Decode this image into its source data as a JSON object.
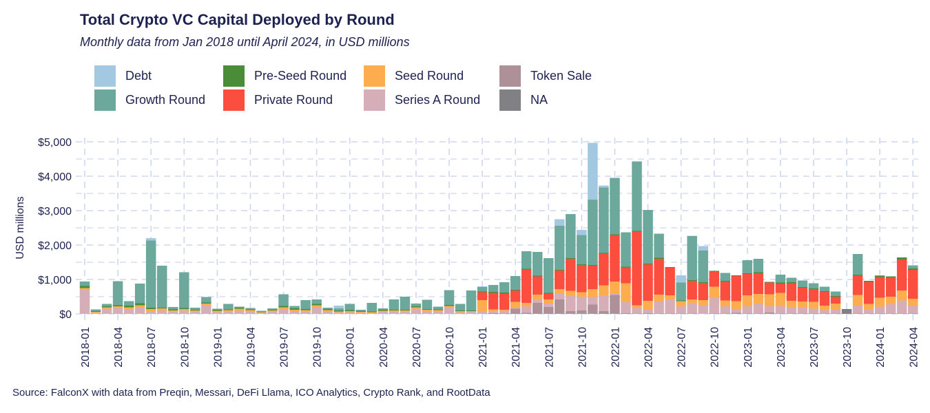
{
  "chart_data": {
    "type": "bar",
    "stacked": true,
    "title": "Total Crypto VC Capital Deployed by Round",
    "subtitle": "Monthly data from Jan 2018 until April 2024, in USD millions",
    "xlabel": "",
    "ylabel": "USD millions",
    "ylim": [
      0,
      5000
    ],
    "yticks": [
      0,
      1000,
      2000,
      3000,
      4000,
      5000
    ],
    "ytick_labels": [
      "$0",
      "$1,000",
      "$2,000",
      "$3,000",
      "$4,000",
      "$5,000"
    ],
    "xtick_labels": [
      "2018-01",
      "2018-04",
      "2018-07",
      "2018-10",
      "2019-01",
      "2019-04",
      "2019-07",
      "2019-10",
      "2020-01",
      "2020-04",
      "2020-07",
      "2020-10",
      "2021-01",
      "2021-04",
      "2021-07",
      "2021-10",
      "2022-01",
      "2022-04",
      "2022-07",
      "2022-10",
      "2023-01",
      "2023-04",
      "2023-07",
      "2023-10",
      "2024-01",
      "2024-04"
    ],
    "grid": true,
    "legend_position": "top",
    "source": "Source: FalconX with data from Preqin, Messari, DeFi Llama, ICO Analytics, Crypto Rank, and RootData",
    "categories": [
      "2018-01",
      "2018-02",
      "2018-03",
      "2018-04",
      "2018-05",
      "2018-06",
      "2018-07",
      "2018-08",
      "2018-09",
      "2018-10",
      "2018-11",
      "2018-12",
      "2019-01",
      "2019-02",
      "2019-03",
      "2019-04",
      "2019-05",
      "2019-06",
      "2019-07",
      "2019-08",
      "2019-09",
      "2019-10",
      "2019-11",
      "2019-12",
      "2020-01",
      "2020-02",
      "2020-03",
      "2020-04",
      "2020-05",
      "2020-06",
      "2020-07",
      "2020-08",
      "2020-09",
      "2020-10",
      "2020-11",
      "2020-12",
      "2021-01",
      "2021-02",
      "2021-03",
      "2021-04",
      "2021-05",
      "2021-06",
      "2021-07",
      "2021-08",
      "2021-09",
      "2021-10",
      "2021-11",
      "2021-12",
      "2022-01",
      "2022-02",
      "2022-03",
      "2022-04",
      "2022-05",
      "2022-06",
      "2022-07",
      "2022-08",
      "2022-09",
      "2022-10",
      "2022-11",
      "2022-12",
      "2023-01",
      "2023-02",
      "2023-03",
      "2023-04",
      "2023-05",
      "2023-06",
      "2023-07",
      "2023-08",
      "2023-09",
      "2023-10",
      "2023-11",
      "2023-12",
      "2024-01",
      "2024-02",
      "2024-03",
      "2024-04"
    ],
    "series": [
      {
        "name": "NA",
        "color": "#818085",
        "values": [
          0,
          0,
          0,
          0,
          0,
          0,
          0,
          0,
          0,
          0,
          0,
          0,
          0,
          0,
          0,
          0,
          0,
          0,
          0,
          0,
          0,
          0,
          0,
          0,
          0,
          0,
          0,
          0,
          0,
          0,
          0,
          0,
          0,
          0,
          0,
          0,
          0,
          0,
          0,
          0,
          0,
          0,
          0,
          0,
          0,
          0,
          0,
          0,
          0,
          0,
          0,
          0,
          0,
          0,
          0,
          0,
          0,
          0,
          0,
          0,
          0,
          0,
          0,
          0,
          0,
          0,
          0,
          0,
          0,
          130,
          0,
          0,
          0,
          0,
          0,
          0
        ]
      },
      {
        "name": "Token Sale",
        "color": "#ad9098",
        "values": [
          0,
          0,
          0,
          0,
          0,
          0,
          0,
          0,
          0,
          0,
          0,
          0,
          0,
          0,
          0,
          0,
          0,
          0,
          0,
          0,
          0,
          0,
          0,
          0,
          0,
          0,
          0,
          0,
          0,
          0,
          0,
          0,
          0,
          0,
          0,
          0,
          0,
          20,
          10,
          150,
          30,
          320,
          200,
          420,
          80,
          100,
          270,
          80,
          550,
          20,
          10,
          20,
          10,
          10,
          10,
          10,
          0,
          10,
          10,
          30,
          10,
          10,
          40,
          10,
          10,
          10,
          10,
          10,
          10,
          0,
          10,
          10,
          10,
          10,
          10,
          10
        ]
      },
      {
        "name": "Series A Round",
        "color": "#d5aeb8",
        "values": [
          700,
          30,
          150,
          170,
          130,
          180,
          80,
          100,
          70,
          100,
          60,
          250,
          50,
          70,
          90,
          60,
          30,
          60,
          130,
          60,
          70,
          200,
          60,
          40,
          40,
          30,
          10,
          70,
          60,
          70,
          150,
          70,
          70,
          180,
          40,
          60,
          70,
          50,
          80,
          20,
          190,
          80,
          100,
          180,
          440,
          400,
          220,
          450,
          40,
          320,
          160,
          100,
          350,
          410,
          210,
          310,
          250,
          450,
          210,
          110,
          210,
          290,
          180,
          220,
          190,
          180,
          140,
          100,
          120,
          0,
          230,
          120,
          200,
          280,
          380,
          230
        ]
      },
      {
        "name": "Seed Round",
        "color": "#fdad4e",
        "values": [
          50,
          30,
          40,
          50,
          60,
          70,
          60,
          60,
          30,
          40,
          40,
          50,
          40,
          40,
          60,
          50,
          20,
          40,
          60,
          60,
          40,
          50,
          50,
          30,
          40,
          30,
          40,
          20,
          40,
          30,
          40,
          50,
          40,
          50,
          40,
          20,
          330,
          60,
          30,
          180,
          100,
          160,
          120,
          120,
          150,
          130,
          230,
          300,
          350,
          550,
          80,
          260,
          200,
          120,
          150,
          100,
          150,
          330,
          170,
          230,
          320,
          280,
          350,
          380,
          180,
          170,
          200,
          130,
          170,
          0,
          310,
          160,
          260,
          210,
          290,
          200
        ]
      },
      {
        "name": "Private Round",
        "color": "#fb4e3e",
        "values": [
          0,
          0,
          0,
          0,
          0,
          0,
          0,
          0,
          0,
          0,
          0,
          0,
          0,
          0,
          0,
          0,
          0,
          0,
          0,
          0,
          0,
          0,
          0,
          0,
          0,
          0,
          0,
          0,
          0,
          0,
          0,
          0,
          0,
          0,
          0,
          0,
          230,
          480,
          470,
          330,
          970,
          530,
          170,
          540,
          930,
          790,
          680,
          920,
          1350,
          460,
          2140,
          1060,
          1040,
          800,
          0,
          540,
          500,
          440,
          550,
          730,
          620,
          600,
          340,
          270,
          510,
          400,
          370,
          400,
          200,
          0,
          570,
          640,
          600,
          560,
          900,
          840
        ]
      },
      {
        "name": "Pre-Seed Round",
        "color": "#4a8c38",
        "values": [
          60,
          20,
          30,
          30,
          50,
          60,
          40,
          20,
          30,
          30,
          20,
          30,
          30,
          20,
          30,
          20,
          10,
          20,
          40,
          40,
          30,
          40,
          30,
          30,
          30,
          20,
          20,
          30,
          20,
          20,
          30,
          20,
          20,
          30,
          20,
          20,
          20,
          30,
          30,
          20,
          20,
          20,
          20,
          20,
          20,
          20,
          20,
          20,
          20,
          20,
          20,
          20,
          30,
          20,
          20,
          20,
          20,
          20,
          20,
          20,
          20,
          30,
          20,
          30,
          30,
          20,
          20,
          20,
          20,
          10,
          20,
          30,
          30,
          30,
          60,
          40
        ]
      },
      {
        "name": "Growth Round",
        "color": "#6ca99c",
        "values": [
          130,
          50,
          70,
          700,
          130,
          570,
          1950,
          1220,
          70,
          1040,
          60,
          160,
          30,
          160,
          30,
          40,
          30,
          40,
          340,
          70,
          260,
          130,
          40,
          60,
          180,
          40,
          250,
          40,
          300,
          380,
          80,
          270,
          80,
          430,
          190,
          580,
          130,
          200,
          300,
          400,
          510,
          690,
          1010,
          1280,
          1280,
          850,
          1900,
          1900,
          1630,
          1000,
          2020,
          1560,
          700,
          0,
          520,
          1280,
          920,
          0,
          230,
          0,
          380,
          390,
          0,
          230,
          130,
          190,
          150,
          130,
          130,
          0,
          600,
          0,
          20,
          0,
          0,
          90
        ]
      },
      {
        "name": "Debt",
        "color": "#a3c8e2",
        "values": [
          0,
          0,
          0,
          0,
          0,
          0,
          70,
          0,
          0,
          0,
          0,
          0,
          0,
          0,
          0,
          0,
          0,
          0,
          0,
          0,
          0,
          0,
          0,
          80,
          0,
          0,
          0,
          0,
          0,
          0,
          0,
          0,
          0,
          0,
          0,
          0,
          20,
          0,
          0,
          0,
          0,
          0,
          0,
          190,
          0,
          150,
          1650,
          60,
          20,
          0,
          0,
          0,
          0,
          0,
          210,
          10,
          130,
          0,
          0,
          0,
          0,
          0,
          0,
          0,
          0,
          0,
          0,
          0,
          0,
          0,
          0,
          0,
          0,
          0,
          0,
          0
        ]
      }
    ]
  }
}
